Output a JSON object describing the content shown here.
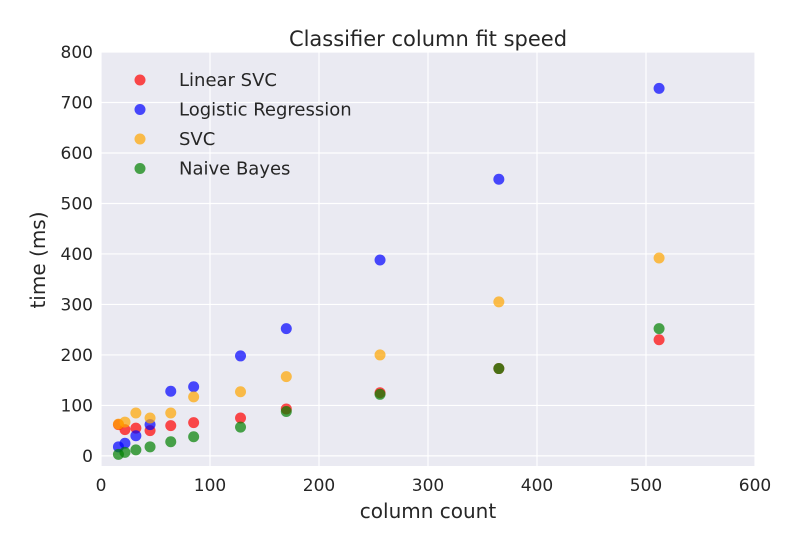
{
  "chart_data": {
    "type": "scatter",
    "title": "Classifier column fit speed",
    "xlabel": "column count",
    "ylabel": "time (ms)",
    "xlim": [
      0,
      600
    ],
    "ylim": [
      -20,
      800
    ],
    "xticks": [
      0,
      100,
      200,
      300,
      400,
      500,
      600
    ],
    "yticks": [
      0,
      100,
      200,
      300,
      400,
      500,
      600,
      700,
      800
    ],
    "grid": true,
    "legend_position": "top-left",
    "background": "#eaeaf2",
    "series": [
      {
        "name": "Linear SVC",
        "color": "#ff0000",
        "x": [
          16,
          22,
          32,
          45,
          64,
          85,
          128,
          170,
          256,
          365,
          512
        ],
        "y": [
          62,
          52,
          55,
          50,
          60,
          66,
          75,
          93,
          125,
          173,
          230
        ]
      },
      {
        "name": "Logistic Regression",
        "color": "#0000ff",
        "x": [
          16,
          22,
          32,
          45,
          64,
          85,
          128,
          170,
          256,
          365,
          512
        ],
        "y": [
          18,
          25,
          40,
          62,
          128,
          137,
          198,
          252,
          388,
          548,
          728
        ]
      },
      {
        "name": "SVC",
        "color": "#ffa500",
        "x": [
          16,
          22,
          32,
          45,
          64,
          85,
          128,
          170,
          256,
          365,
          512
        ],
        "y": [
          63,
          67,
          85,
          75,
          85,
          117,
          127,
          157,
          200,
          305,
          392
        ]
      },
      {
        "name": "Naive Bayes",
        "color": "#008000",
        "x": [
          16,
          22,
          32,
          45,
          64,
          85,
          128,
          170,
          256,
          365,
          512
        ],
        "y": [
          3,
          7,
          12,
          18,
          28,
          38,
          57,
          88,
          122,
          173,
          252
        ]
      }
    ]
  }
}
